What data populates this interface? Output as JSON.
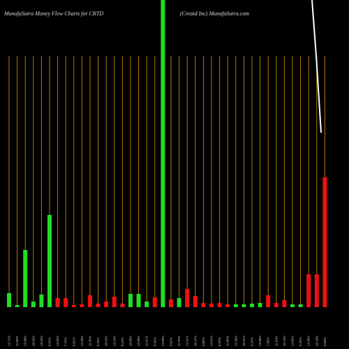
{
  "chart_data": {
    "type": "bar",
    "title": "MunafaSutra  Money Flow  Charts for CRTD",
    "subtitle": "(Creatd Inc) MunafaSutra.com",
    "categories": [
      "12.71%",
      "11.68%",
      "13.58%",
      "10.02%",
      "12.52%",
      "8.54%",
      "14.62%",
      "7.73%",
      "9.81%",
      "12.38%",
      "11.35%",
      "9.41%",
      "10.62%",
      "13.24%",
      "8.12%",
      "10.86%",
      "12.96%",
      "11.41%",
      "8.36%",
      "14.09%",
      "9.62%",
      "11.78%",
      "12.11%",
      "10.37%",
      "9.85%",
      "13.51%",
      "8.93%",
      "11.06%",
      "12.49%",
      "10.21%",
      "9.14%",
      "13.88%",
      "7.95%",
      "11.63%",
      "10.74%",
      "12.82%",
      "9.29%",
      "14.35%",
      "16.18%",
      "0.00%"
    ],
    "values": [
      20,
      3,
      82,
      8,
      18,
      132,
      13,
      13,
      3,
      4,
      17,
      5,
      8,
      15,
      5,
      19,
      19,
      8,
      14,
      440,
      11,
      13,
      26,
      16,
      6,
      5,
      6,
      4,
      4,
      4,
      5,
      6,
      17,
      6,
      10,
      4,
      4,
      47,
      47,
      186
    ],
    "bar_colors": [
      "#22dd22",
      "#22dd22",
      "#22dd22",
      "#22dd22",
      "#22dd22",
      "#22dd22",
      "#ee1111",
      "#ee1111",
      "#ee1111",
      "#ee1111",
      "#ee1111",
      "#ee1111",
      "#ee1111",
      "#ee1111",
      "#ee1111",
      "#22dd22",
      "#22dd22",
      "#22dd22",
      "#ee1111",
      "#22dd22",
      "#ee1111",
      "#22dd22",
      "#ee1111",
      "#ee1111",
      "#ee1111",
      "#ee1111",
      "#ee1111",
      "#ee1111",
      "#22dd22",
      "#22dd22",
      "#22dd22",
      "#22dd22",
      "#ee1111",
      "#ee1111",
      "#ee1111",
      "#22dd22",
      "#22dd22",
      "#ee1111",
      "#ee1111",
      "#ee1111"
    ],
    "ylim": [
      0,
      440
    ],
    "grid": true,
    "grid_color": "#b8780b"
  }
}
